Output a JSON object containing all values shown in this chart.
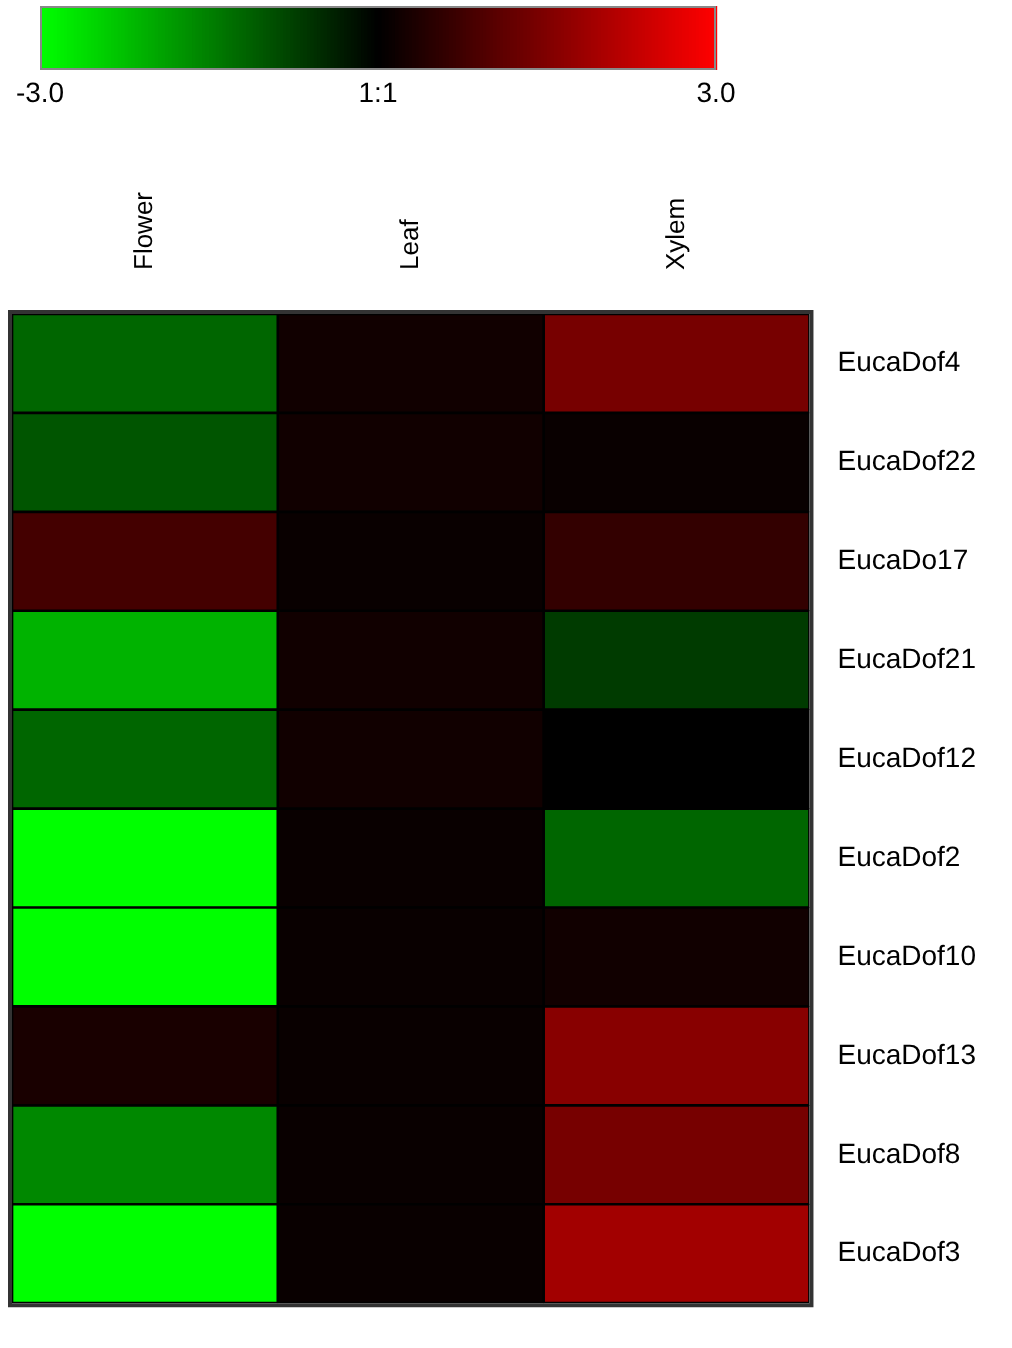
{
  "chart_data": {
    "type": "heatmap",
    "categories": [
      "Flower",
      "Leaf",
      "Xylem"
    ],
    "y_categories": [
      "EucaDof4",
      "EucaDof22",
      "EucaDo17",
      "EucaDof21",
      "EucaDof12",
      "EucaDof2",
      "EucaDof10",
      "EucaDof13",
      "EucaDof8",
      "EucaDof3"
    ],
    "cells": [
      [
        -1.2,
        0.2,
        1.4
      ],
      [
        -1.0,
        0.2,
        0.1
      ],
      [
        0.8,
        0.1,
        0.6
      ],
      [
        -2.1,
        0.2,
        -0.7
      ],
      [
        -1.2,
        0.2,
        0.0
      ],
      [
        -3.0,
        0.1,
        -1.2
      ],
      [
        -3.0,
        0.1,
        0.2
      ],
      [
        0.3,
        0.1,
        1.6
      ],
      [
        -1.6,
        0.1,
        1.4
      ],
      [
        -3.0,
        0.1,
        1.9
      ]
    ],
    "clim": [
      -3.0,
      3.0
    ],
    "cticks": [
      {
        "value": -3.0,
        "label": "-3.0"
      },
      {
        "value": 0,
        "label": "1:1"
      },
      {
        "value": 3.0,
        "label": "3.0"
      }
    ]
  }
}
